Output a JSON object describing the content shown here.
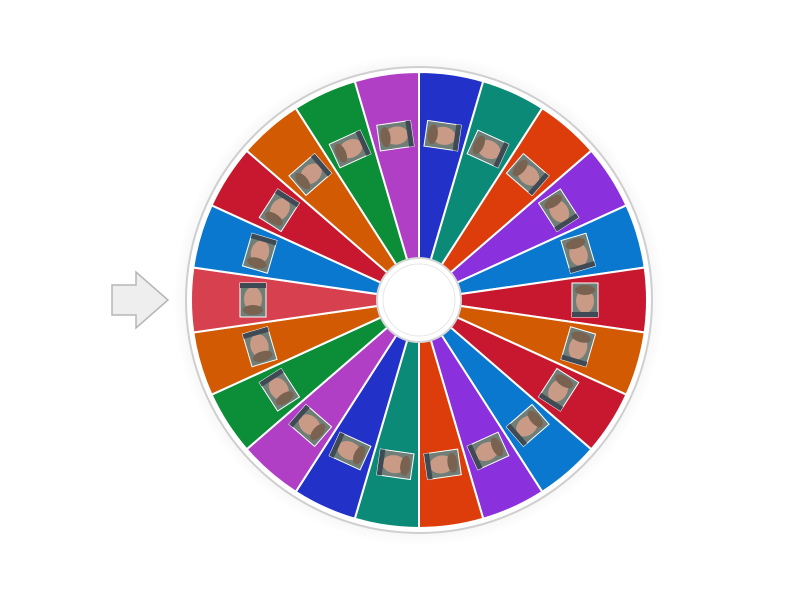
{
  "wheel": {
    "segments": [
      {
        "color": "#2232c8"
      },
      {
        "color": "#0b8a78"
      },
      {
        "color": "#dc3d0b"
      },
      {
        "color": "#8a30dc"
      },
      {
        "color": "#0a78cf"
      },
      {
        "color": "#c8182f"
      },
      {
        "color": "#d25a02"
      },
      {
        "color": "#c8182f"
      },
      {
        "color": "#0a78cf"
      },
      {
        "color": "#8a30dc"
      },
      {
        "color": "#dc3d0b"
      },
      {
        "color": "#0b8a78"
      },
      {
        "color": "#2232c8"
      },
      {
        "color": "#b03fc6"
      },
      {
        "color": "#0b8e37"
      },
      {
        "color": "#d25a02"
      },
      {
        "color": "#d6404f"
      },
      {
        "color": "#0a78cf"
      },
      {
        "color": "#c8182f"
      },
      {
        "color": "#d25a02"
      },
      {
        "color": "#0b8e37"
      },
      {
        "color": "#b03fc6"
      }
    ]
  }
}
